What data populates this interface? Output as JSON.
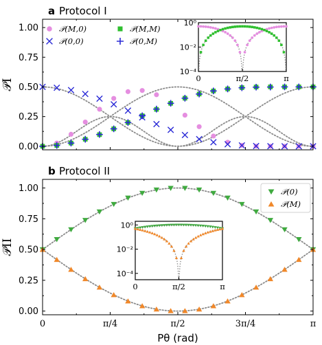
{
  "chart_data": [
    {
      "panel_label": "a",
      "title": "Protocol I",
      "type": "scatter",
      "ylabel": "𝒫I",
      "xlim": [
        0,
        3.14159
      ],
      "ylim": [
        -0.03,
        1.07
      ],
      "yticks": [
        "0.00",
        "0.25",
        "0.50",
        "0.75",
        "1.00"
      ],
      "x_tick_labels_shown": false,
      "model_curves": [
        "0.5·cos²(θ)",
        "0.5·sin²(θ)",
        "cos²(θ)·sin²(θ)"
      ],
      "legend_position": "top-left",
      "series": [
        {
          "name": "𝒫(M,0)",
          "marker": "circle",
          "color": "#e58ee0",
          "x": [
            0,
            0.1653,
            0.3307,
            0.496,
            0.6614,
            0.8267,
            0.9921,
            1.1574,
            1.3228,
            1.4881,
            1.6535,
            1.8188,
            1.9842,
            2.1495,
            2.3149,
            2.4802,
            2.6456,
            2.8109,
            2.9763,
            3.1416
          ],
          "y": [
            0.0,
            0.027,
            0.101,
            0.204,
            0.312,
            0.403,
            0.46,
            0.47,
            0.434,
            0.36,
            0.262,
            0.165,
            0.086,
            0.034,
            0.008,
            0.001,
            0.0,
            0.0,
            0.0,
            0.0
          ]
        },
        {
          "name": "𝒫(M,M)",
          "marker": "square",
          "color": "#2fbf2f",
          "x": [
            0,
            0.1653,
            0.3307,
            0.496,
            0.6614,
            0.8267,
            0.9921,
            1.1574,
            1.3228,
            1.4881,
            1.6535,
            1.8188,
            1.9842,
            2.1495,
            2.3149,
            2.4802,
            2.6456,
            2.8109,
            2.9763,
            3.1416
          ],
          "y": [
            0.0,
            0.007,
            0.027,
            0.059,
            0.098,
            0.147,
            0.2,
            0.257,
            0.311,
            0.362,
            0.405,
            0.44,
            0.466,
            0.483,
            0.494,
            0.499,
            0.5,
            0.5,
            0.5,
            0.5
          ]
        },
        {
          "name": "𝒫(0,0)",
          "marker": "x",
          "color": "#2b2bd6",
          "x": [
            0,
            0.1653,
            0.3307,
            0.496,
            0.6614,
            0.8267,
            0.9921,
            1.1574,
            1.3228,
            1.4881,
            1.6535,
            1.8188,
            1.9842,
            2.1495,
            2.3149,
            2.4802,
            2.6456,
            2.8109,
            2.9763,
            3.1416
          ],
          "y": [
            0.5,
            0.493,
            0.473,
            0.441,
            0.401,
            0.353,
            0.3,
            0.243,
            0.187,
            0.138,
            0.095,
            0.06,
            0.034,
            0.017,
            0.007,
            0.002,
            0.001,
            0.0,
            0.0,
            0.0
          ]
        },
        {
          "name": "𝒫(0,M)",
          "marker": "plus",
          "color": "#2b2bd6",
          "x": [
            0,
            0.1653,
            0.3307,
            0.496,
            0.6614,
            0.8267,
            0.9921,
            1.1574,
            1.3228,
            1.4881,
            1.6535,
            1.8188,
            1.9842,
            2.1495,
            2.3149,
            2.4802,
            2.6456,
            2.8109,
            2.9763,
            3.1416
          ],
          "y": [
            0.0,
            0.007,
            0.027,
            0.059,
            0.099,
            0.147,
            0.2,
            0.257,
            0.313,
            0.362,
            0.405,
            0.44,
            0.466,
            0.483,
            0.493,
            0.498,
            0.499,
            0.5,
            0.5,
            0.5
          ]
        }
      ],
      "inset": {
        "yscale": "log",
        "ylim": [
          0.0001,
          1
        ],
        "yticks": [
          "10⁰",
          "10⁻²",
          "10⁻⁴"
        ],
        "xticks": [
          "0",
          "π/2",
          "π"
        ]
      }
    },
    {
      "panel_label": "b",
      "title": "Protocol II",
      "type": "scatter",
      "xlabel": "Pθ (rad)",
      "ylabel": "𝒫II",
      "xlim": [
        0,
        3.14159
      ],
      "ylim": [
        -0.03,
        1.07
      ],
      "xticks": [
        "0",
        "π/4",
        "π/2",
        "3π/4",
        "π"
      ],
      "yticks": [
        "0.00",
        "0.25",
        "0.50",
        "0.75",
        "1.00"
      ],
      "model_curves": [
        "0.5+0.5·sin(θ)",
        "0.5-0.5·sin(θ)"
      ],
      "legend_position": "top-right",
      "series": [
        {
          "name": "𝒫(0)",
          "marker": "triangle-down",
          "color": "#3faa3f",
          "x": [
            0,
            0.1653,
            0.3307,
            0.496,
            0.6614,
            0.8267,
            0.9921,
            1.1574,
            1.3228,
            1.4881,
            1.6535,
            1.8188,
            1.9842,
            2.1495,
            2.3149,
            2.4802,
            2.6456,
            2.8109,
            2.9763,
            3.1416
          ],
          "y": [
            0.5,
            0.582,
            0.662,
            0.738,
            0.807,
            0.868,
            0.919,
            0.958,
            0.985,
            0.998,
            0.998,
            0.985,
            0.958,
            0.919,
            0.868,
            0.807,
            0.738,
            0.662,
            0.582,
            0.5
          ]
        },
        {
          "name": "𝒫(M)",
          "marker": "triangle-up",
          "color": "#f0882a",
          "x": [
            0,
            0.1653,
            0.3307,
            0.496,
            0.6614,
            0.8267,
            0.9921,
            1.1574,
            1.3228,
            1.4881,
            1.6535,
            1.8188,
            1.9842,
            2.1495,
            2.3149,
            2.4802,
            2.6456,
            2.8109,
            2.9763,
            3.1416
          ],
          "y": [
            0.5,
            0.418,
            0.338,
            0.262,
            0.193,
            0.132,
            0.081,
            0.042,
            0.015,
            0.002,
            0.002,
            0.015,
            0.042,
            0.081,
            0.132,
            0.193,
            0.262,
            0.338,
            0.418,
            0.5
          ]
        }
      ],
      "inset": {
        "yscale": "log",
        "ylim": [
          3e-05,
          2
        ],
        "yticks": [
          "10⁰",
          "10⁻²",
          "10⁻⁴"
        ],
        "xticks": [
          "0",
          "π/2",
          "π"
        ]
      }
    }
  ]
}
